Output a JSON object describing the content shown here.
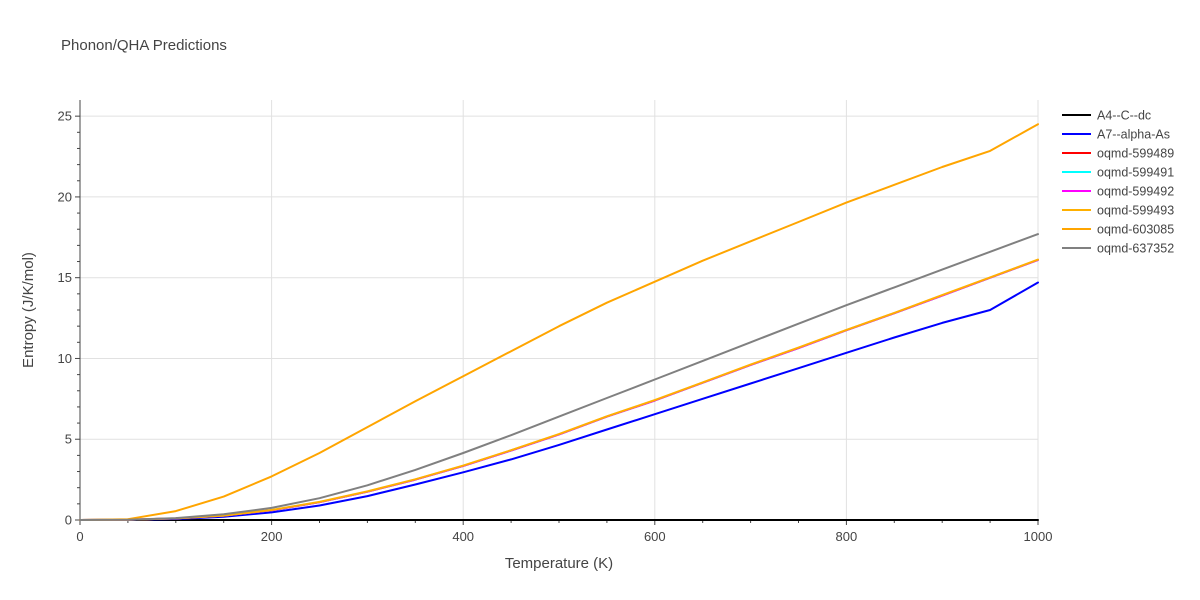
{
  "chart_data": {
    "type": "line",
    "title": "Phonon/QHA Predictions",
    "xlabel": "Temperature (K)",
    "ylabel": "Entropy (J/K/mol)",
    "xlim": [
      0,
      1000
    ],
    "ylim": [
      0,
      26
    ],
    "xticks": [
      0,
      200,
      400,
      600,
      800,
      1000
    ],
    "yticks": [
      0,
      5,
      10,
      15,
      20,
      25
    ],
    "grid": true,
    "legend_position": "top-right",
    "x": [
      0,
      50,
      100,
      150,
      200,
      250,
      300,
      350,
      400,
      450,
      500,
      550,
      600,
      650,
      700,
      750,
      800,
      850,
      900,
      950,
      1000
    ],
    "series": [
      {
        "name": "A4--C--dc",
        "color": "#000000",
        "values": [
          0,
          0.0,
          0.0,
          0.0,
          0.0,
          0.0,
          0.0,
          0.0,
          0.0,
          0.0,
          0.0,
          0.0,
          0.0,
          0.0,
          0.0,
          0.0,
          0.0,
          0.0,
          0.0,
          0.0,
          0.0
        ]
      },
      {
        "name": "A7--alpha-As",
        "color": "#0000ff",
        "values": [
          0,
          0.01,
          0.06,
          0.2,
          0.47,
          0.9,
          1.48,
          2.2,
          2.95,
          3.75,
          4.65,
          5.6,
          6.55,
          7.5,
          8.45,
          9.4,
          10.35,
          11.3,
          12.2,
          13.0,
          14.7
        ]
      },
      {
        "name": "oqmd-599489",
        "color": "#ff0000",
        "values": [
          0,
          0.02,
          0.1,
          0.27,
          0.6,
          1.1,
          1.75,
          2.5,
          3.35,
          4.3,
          5.3,
          6.4,
          7.4,
          8.5,
          9.6,
          10.65,
          11.75,
          12.8,
          13.9,
          15.0,
          16.1
        ]
      },
      {
        "name": "oqmd-599491",
        "color": "#00ffff",
        "values": [
          0,
          0.02,
          0.1,
          0.27,
          0.6,
          1.1,
          1.75,
          2.5,
          3.35,
          4.3,
          5.3,
          6.4,
          7.4,
          8.5,
          9.6,
          10.65,
          11.75,
          12.8,
          13.9,
          15.0,
          16.1
        ]
      },
      {
        "name": "oqmd-599492",
        "color": "#ff00ff",
        "values": [
          0,
          0.02,
          0.1,
          0.27,
          0.6,
          1.1,
          1.75,
          2.5,
          3.35,
          4.3,
          5.3,
          6.4,
          7.4,
          8.5,
          9.6,
          10.65,
          11.75,
          12.8,
          13.9,
          15.0,
          16.1
        ]
      },
      {
        "name": "oqmd-599493",
        "color": "#ffb000",
        "values": [
          0,
          0.02,
          0.1,
          0.27,
          0.62,
          1.12,
          1.77,
          2.52,
          3.37,
          4.32,
          5.32,
          6.42,
          7.42,
          8.52,
          9.62,
          10.67,
          11.77,
          12.82,
          13.92,
          15.02,
          16.12
        ]
      },
      {
        "name": "oqmd-603085",
        "color": "#ffa500",
        "values": [
          0,
          0.05,
          0.55,
          1.45,
          2.7,
          4.15,
          5.75,
          7.35,
          8.9,
          10.45,
          12.0,
          13.45,
          14.75,
          16.05,
          17.25,
          18.45,
          19.65,
          20.75,
          21.85,
          22.85,
          24.5
        ]
      },
      {
        "name": "oqmd-637352",
        "color": "#808080",
        "values": [
          0,
          0.02,
          0.12,
          0.35,
          0.75,
          1.35,
          2.15,
          3.1,
          4.15,
          5.25,
          6.4,
          7.55,
          8.7,
          9.85,
          11.0,
          12.15,
          13.3,
          14.4,
          15.5,
          16.6,
          17.7
        ]
      }
    ]
  }
}
